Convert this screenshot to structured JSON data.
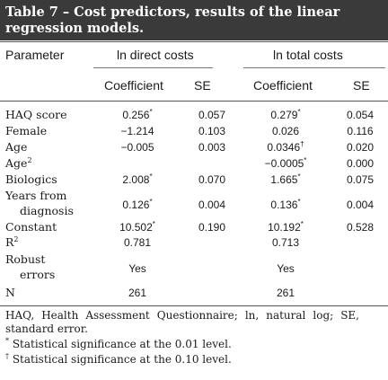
{
  "title": "Table 7 – Cost predictors, results of the linear regression models.",
  "title_line1": "Table 7 – Cost predictors, results of the linear",
  "title_line2": "regression models.",
  "header": {
    "parameter": "Parameter",
    "group1": "ln direct costs",
    "group2": "ln total costs",
    "coef": "Coefficient",
    "se": "SE"
  },
  "rows": [
    {
      "label": "HAQ score",
      "d_coef": "0.256",
      "d_coef_mark": "*",
      "d_se": "0.057",
      "t_coef": "0.279",
      "t_coef_mark": "*",
      "t_se": "0.054"
    },
    {
      "label": "Female",
      "d_coef": "−1.214",
      "d_coef_mark": "",
      "d_se": "0.103",
      "t_coef": "0.026",
      "t_coef_mark": "",
      "t_se": "0.116"
    },
    {
      "label": "Age",
      "d_coef": "−0.005",
      "d_coef_mark": "",
      "d_se": "0.003",
      "t_coef": "0.0346",
      "t_coef_mark": "†",
      "t_se": "0.020"
    },
    {
      "label": "Age",
      "label_sup": "2",
      "d_coef": "",
      "d_coef_mark": "",
      "d_se": "",
      "t_coef": "−0.0005",
      "t_coef_mark": "*",
      "t_se": "0.000"
    },
    {
      "label": "Biologics",
      "d_coef": "2.008",
      "d_coef_mark": "*",
      "d_se": "0.070",
      "t_coef": "1.665",
      "t_coef_mark": "*",
      "t_se": "0.075"
    },
    {
      "label": "Years from",
      "label2": "diagnosis",
      "d_coef": "0.126",
      "d_coef_mark": "*",
      "d_se": "0.004",
      "t_coef": "0.136",
      "t_coef_mark": "*",
      "t_se": "0.004"
    },
    {
      "label": "Constant",
      "d_coef": "10.502",
      "d_coef_mark": "*",
      "d_se": "0.190",
      "t_coef": "10.192",
      "t_coef_mark": "*",
      "t_se": "0.528"
    },
    {
      "label": "R",
      "label_sup": "2",
      "d_coef": "0.781",
      "d_coef_mark": "",
      "d_se": "",
      "t_coef": "0.713",
      "t_coef_mark": "",
      "t_se": ""
    },
    {
      "label": "Robust",
      "label2": "errors",
      "d_coef": "Yes",
      "d_coef_mark": "",
      "d_se": "",
      "t_coef": "Yes",
      "t_coef_mark": "",
      "t_se": ""
    },
    {
      "label": "N",
      "d_coef": "261",
      "d_coef_mark": "",
      "d_se": "",
      "t_coef": "261",
      "t_coef_mark": "",
      "t_se": ""
    }
  ],
  "footnotes": {
    "abbrev_line1": "HAQ, Health Assessment Questionnaire; ln, natural log; SE,",
    "abbrev_line2": "standard error.",
    "star_mark": "*",
    "star_text": "Statistical significance at the 0.01 level.",
    "dagger_mark": "†",
    "dagger_text": "Statistical significance at the 0.10 level."
  }
}
